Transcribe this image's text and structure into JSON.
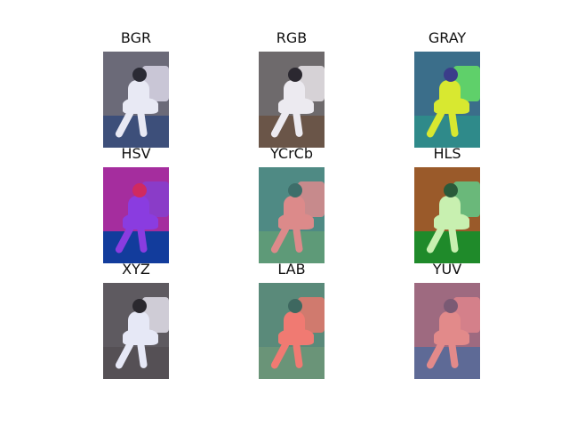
{
  "figure": {
    "panels": [
      {
        "title": "BGR",
        "colors": {
          "bg": "#6b6a78",
          "floor": "#3d4f7a",
          "couch": "#c9c6d6",
          "figure": "#e8e9f4",
          "hair": "#2a2a34"
        }
      },
      {
        "title": "RGB",
        "colors": {
          "bg": "#6e6a6c",
          "floor": "#6a5548",
          "couch": "#d6d2d6",
          "figure": "#eceaf0",
          "hair": "#2b2830"
        }
      },
      {
        "title": "GRAY",
        "colors": {
          "bg": "#3b6e8a",
          "floor": "#2f8a8a",
          "couch": "#5fd06a",
          "figure": "#d8e830",
          "hair": "#3b3d8a"
        }
      },
      {
        "title": "HSV",
        "colors": {
          "bg": "#a52d9e",
          "floor": "#123c9c",
          "couch": "#8a3cc8",
          "figure": "#8a3ce0",
          "hair": "#d02a60"
        }
      },
      {
        "title": "YCrCb",
        "colors": {
          "bg": "#4f8a84",
          "floor": "#5e9a78",
          "couch": "#c78a8c",
          "figure": "#dc8a8a",
          "hair": "#3e6e6a"
        }
      },
      {
        "title": "HLS",
        "colors": {
          "bg": "#9a5a2a",
          "floor": "#1f8a2a",
          "couch": "#6ab87a",
          "figure": "#c8f0b0",
          "hair": "#2a5a3a"
        }
      },
      {
        "title": "XYZ",
        "colors": {
          "bg": "#5e5a60",
          "floor": "#555055",
          "couch": "#cfccd6",
          "figure": "#e6e8f6",
          "hair": "#2a282e"
        }
      },
      {
        "title": "LAB",
        "colors": {
          "bg": "#5a8a7a",
          "floor": "#6a9478",
          "couch": "#d07a6e",
          "figure": "#f07a72",
          "hair": "#3e6860"
        }
      },
      {
        "title": "YUV",
        "colors": {
          "bg": "#9e6a80",
          "floor": "#5e6a96",
          "couch": "#d4808a",
          "figure": "#e28a8a",
          "hair": "#7a5a74"
        }
      }
    ]
  }
}
